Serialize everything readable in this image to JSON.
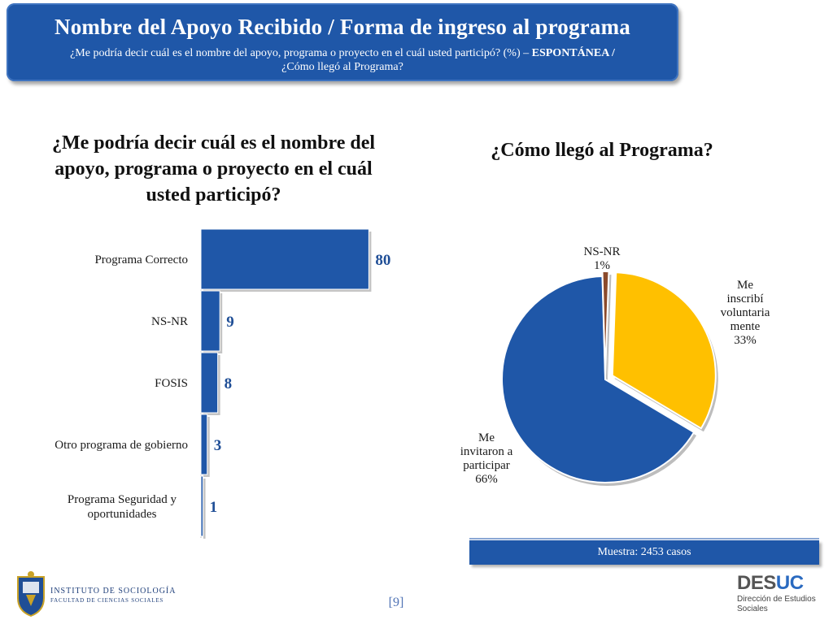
{
  "header": {
    "title": "Nombre del Apoyo Recibido / Forma de ingreso al programa",
    "subtitle_a": "¿Me podría decir cuál es el nombre del apoyo, programa o proyecto en el cuál usted participó? (%) – ",
    "subtitle_bold": "ESPONTÁNEA /",
    "subtitle_b": "¿Cómo llegó al Programa?"
  },
  "left_question": "¿Me podría decir cuál es el nombre del apoyo, programa o proyecto en el cuál usted participó?",
  "right_question": "¿Cómo llegó al Programa?",
  "muestra": "Muestra: 2453 casos",
  "page_number": "[9]",
  "logo_left": {
    "line1": "INSTITUTO DE SOCIOLOGÍA",
    "line2": "FACULTAD DE CIENCIAS SOCIALES"
  },
  "logo_right": {
    "name_a": "DES",
    "name_b": "UC",
    "sub1": "Dirección de Estudios",
    "sub2": "Sociales"
  },
  "colors": {
    "primary": "#1f57a8",
    "yellow": "#ffc000",
    "brown": "#8b4a2b",
    "label_blue": "#1f4e96"
  },
  "chart_data": [
    {
      "type": "bar",
      "orientation": "horizontal",
      "categories": [
        "Programa Correcto",
        "NS-NR",
        "FOSIS",
        "Otro programa de gobierno",
        "Programa Seguridad y oportunidades"
      ],
      "values": [
        80,
        9,
        8,
        3,
        1
      ],
      "xlim": [
        0,
        100
      ]
    },
    {
      "type": "pie",
      "slices": [
        {
          "label": "Me inscribí voluntariamente",
          "value": 33,
          "display": "33%"
        },
        {
          "label": "Me invitaron a participar",
          "value": 66,
          "display": "66%"
        },
        {
          "label": "NS-NR",
          "value": 1,
          "display": "1%"
        }
      ]
    }
  ]
}
